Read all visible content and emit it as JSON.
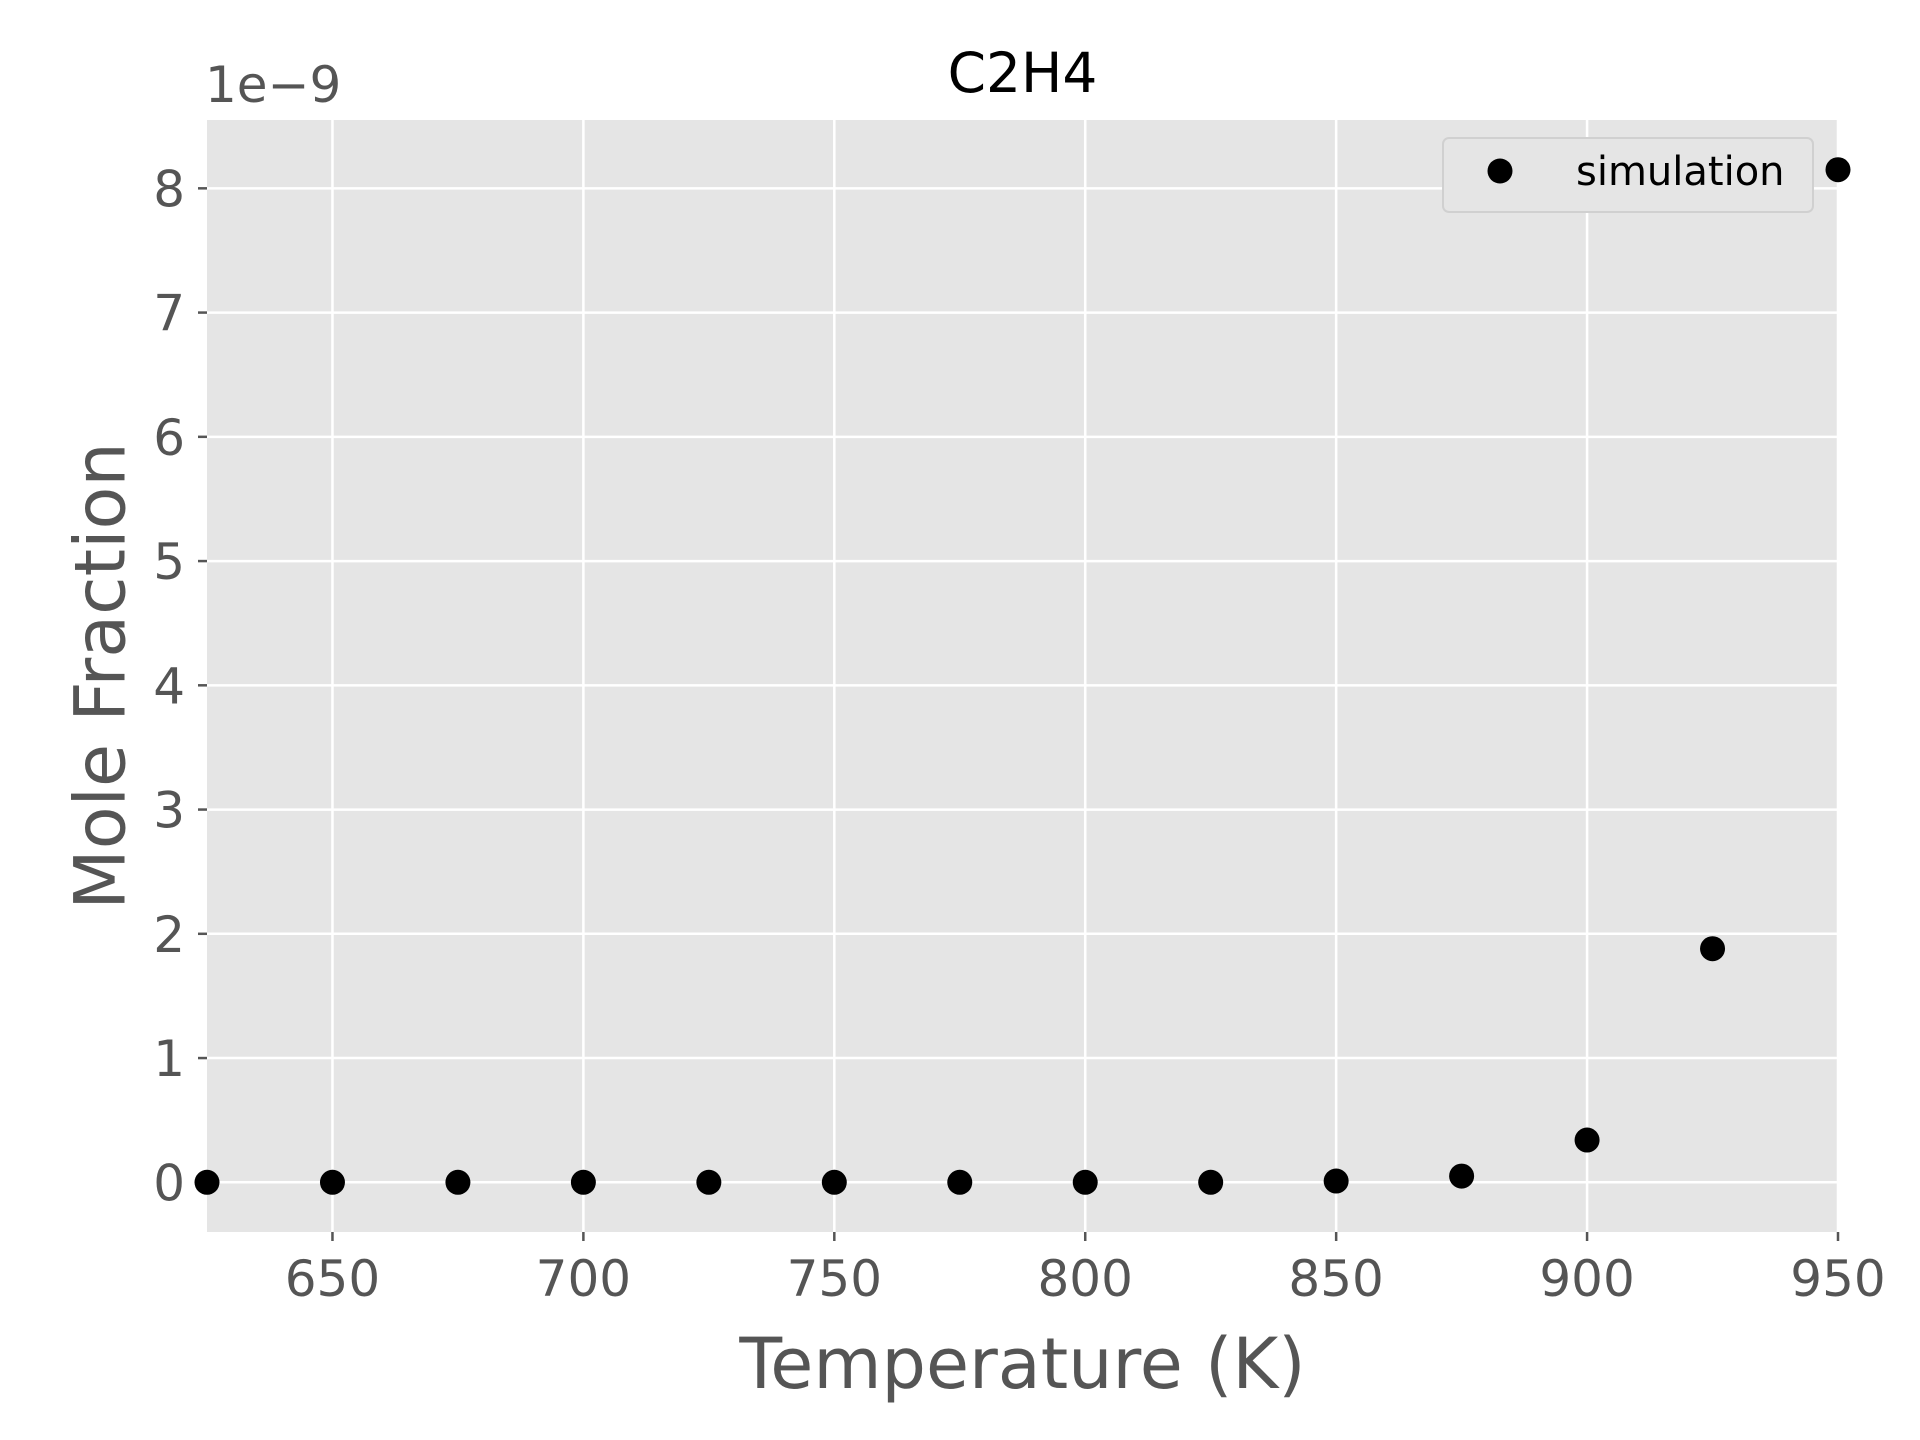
{
  "chart_data": {
    "type": "scatter",
    "title": "C2H4",
    "xlabel": "Temperature (K)",
    "ylabel": "Mole Fraction",
    "y_offset_label": "1e−9",
    "xlim": [
      625,
      950
    ],
    "ylim": [
      -0.4,
      8.55
    ],
    "xticks": [
      650,
      700,
      750,
      800,
      850,
      900,
      950
    ],
    "yticks": [
      0,
      1,
      2,
      3,
      4,
      5,
      6,
      7,
      8
    ],
    "grid": true,
    "legend_position": "top-right",
    "colors": {
      "plot_background": "#e5e5e5",
      "grid": "#ffffff",
      "marker": "#000000",
      "tick_text": "#555555"
    },
    "series": [
      {
        "name": "simulation",
        "marker": "circle",
        "x": [
          625,
          650,
          675,
          700,
          725,
          750,
          775,
          800,
          825,
          850,
          875,
          900,
          925,
          950
        ],
        "y": [
          0,
          0,
          0,
          0,
          0,
          0,
          0,
          0,
          0,
          0.01,
          0.05,
          0.34,
          1.88,
          8.15
        ]
      }
    ]
  }
}
